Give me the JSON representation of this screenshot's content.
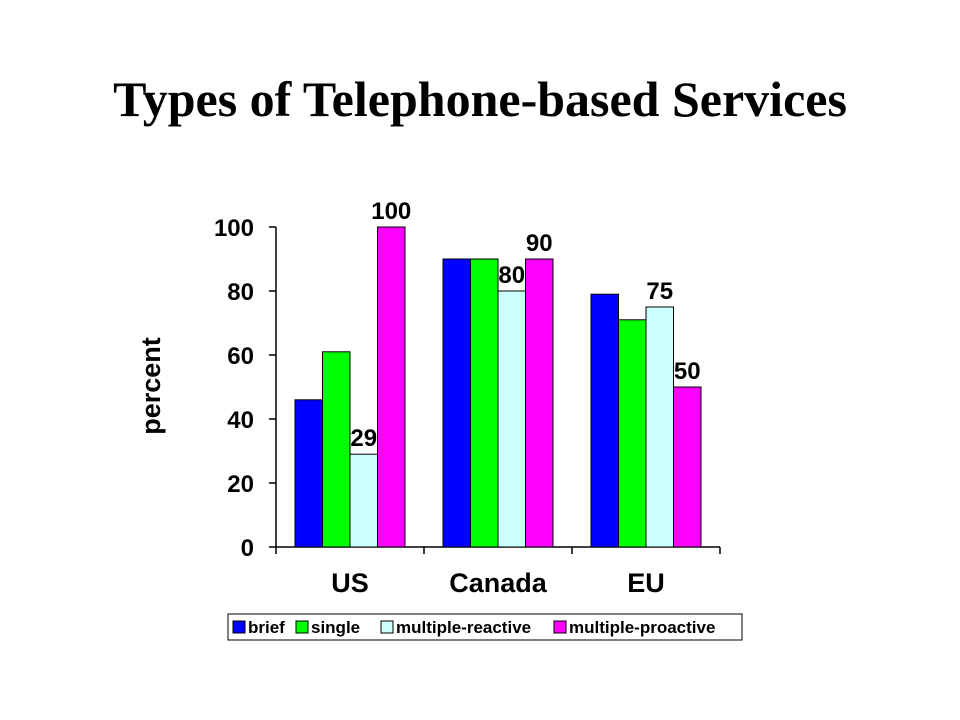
{
  "slide": {
    "title": "Types of Telephone-based Services"
  },
  "chart_data": {
    "type": "bar",
    "title": "",
    "xlabel": "",
    "ylabel": "percent",
    "ylim": [
      0,
      100
    ],
    "yticks": [
      "0",
      "20",
      "40",
      "60",
      "80",
      "100"
    ],
    "categories": [
      "US",
      "Canada",
      "EU"
    ],
    "grid": false,
    "legend_position": "bottom",
    "series": [
      {
        "name": "brief",
        "color": "#0000ff",
        "values": [
          46,
          90,
          79
        ],
        "labels": [
          null,
          null,
          null
        ]
      },
      {
        "name": "single",
        "color": "#00ff00",
        "values": [
          61,
          90,
          71
        ],
        "labels": [
          null,
          null,
          null
        ]
      },
      {
        "name": "multiple-reactive",
        "color": "#ccffff",
        "values": [
          29,
          80,
          75
        ],
        "labels": [
          "29",
          "80",
          "75"
        ]
      },
      {
        "name": "multiple-proactive",
        "color": "#ff00ff",
        "values": [
          100,
          90,
          50
        ],
        "labels": [
          "100",
          "90",
          "50"
        ]
      }
    ]
  }
}
